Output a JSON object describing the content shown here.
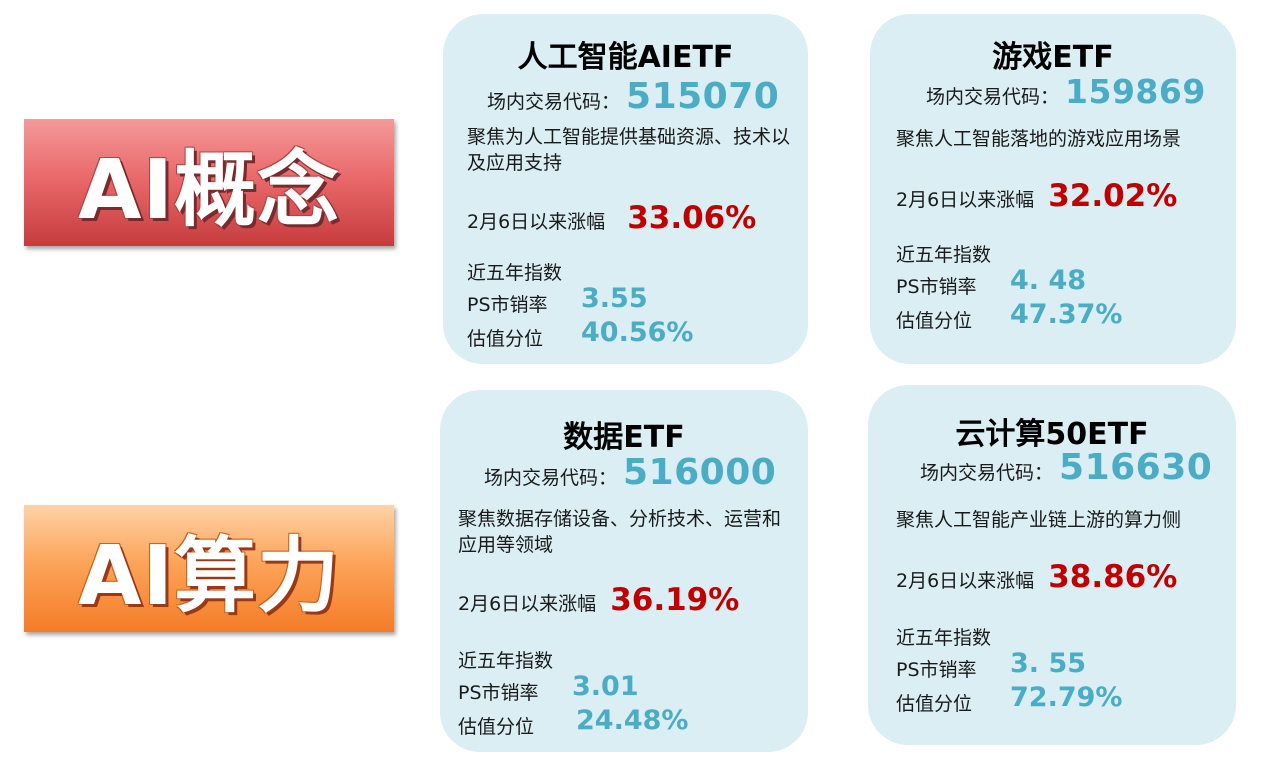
{
  "sections": [
    {
      "label": "AI概念"
    },
    {
      "label": "AI算力"
    }
  ],
  "cards": [
    {
      "title": "人工智能AIETF",
      "code_label": "场内交易代码：",
      "code": "515070",
      "desc": "聚焦为人工智能提供基础资源、技术以及应用支持",
      "gain_label": "2月6日以来涨幅",
      "gain": "33.06%",
      "index_label": "近五年指数",
      "ps_label": "PS市销率",
      "ps": "3.55",
      "pct_label": "估值分位",
      "pct": "40.56%"
    },
    {
      "title": "游戏ETF",
      "code_label": "场内交易代码：",
      "code": "159869",
      "desc": "聚焦人工智能落地的游戏应用场景",
      "gain_label": "2月6日以来涨幅",
      "gain": "32.02%",
      "index_label": "近五年指数",
      "ps_label": "PS市销率",
      "ps": "4. 48",
      "pct_label": "估值分位",
      "pct": "47.37%"
    },
    {
      "title": "数据ETF",
      "code_label": "场内交易代码：",
      "code": "516000",
      "desc": "聚焦数据存储设备、分析技术、运营和应用等领域",
      "gain_label": "2月6日以来涨幅",
      "gain": "36.19%",
      "index_label": "近五年指数",
      "ps_label": "PS市销率",
      "ps": "3.01",
      "pct_label": "估值分位",
      "pct": "24.48%"
    },
    {
      "title": "云计算50ETF",
      "code_label": "场内交易代码：",
      "code": "516630",
      "desc": "聚焦人工智能产业链上游的算力侧",
      "gain_label": "2月6日以来涨幅",
      "gain": "38.86%",
      "index_label": "近五年指数",
      "ps_label": "PS市销率",
      "ps": "3. 55",
      "pct_label": "估值分位",
      "pct": "72.79%"
    }
  ],
  "colors": {
    "card_bg": "#daeef3",
    "code_value": "#4bacc6",
    "gain_value": "#c00000",
    "metric_value": "#4bacc6",
    "banner_concept": "#e0585a",
    "banner_compute": "#fb9b4f"
  }
}
